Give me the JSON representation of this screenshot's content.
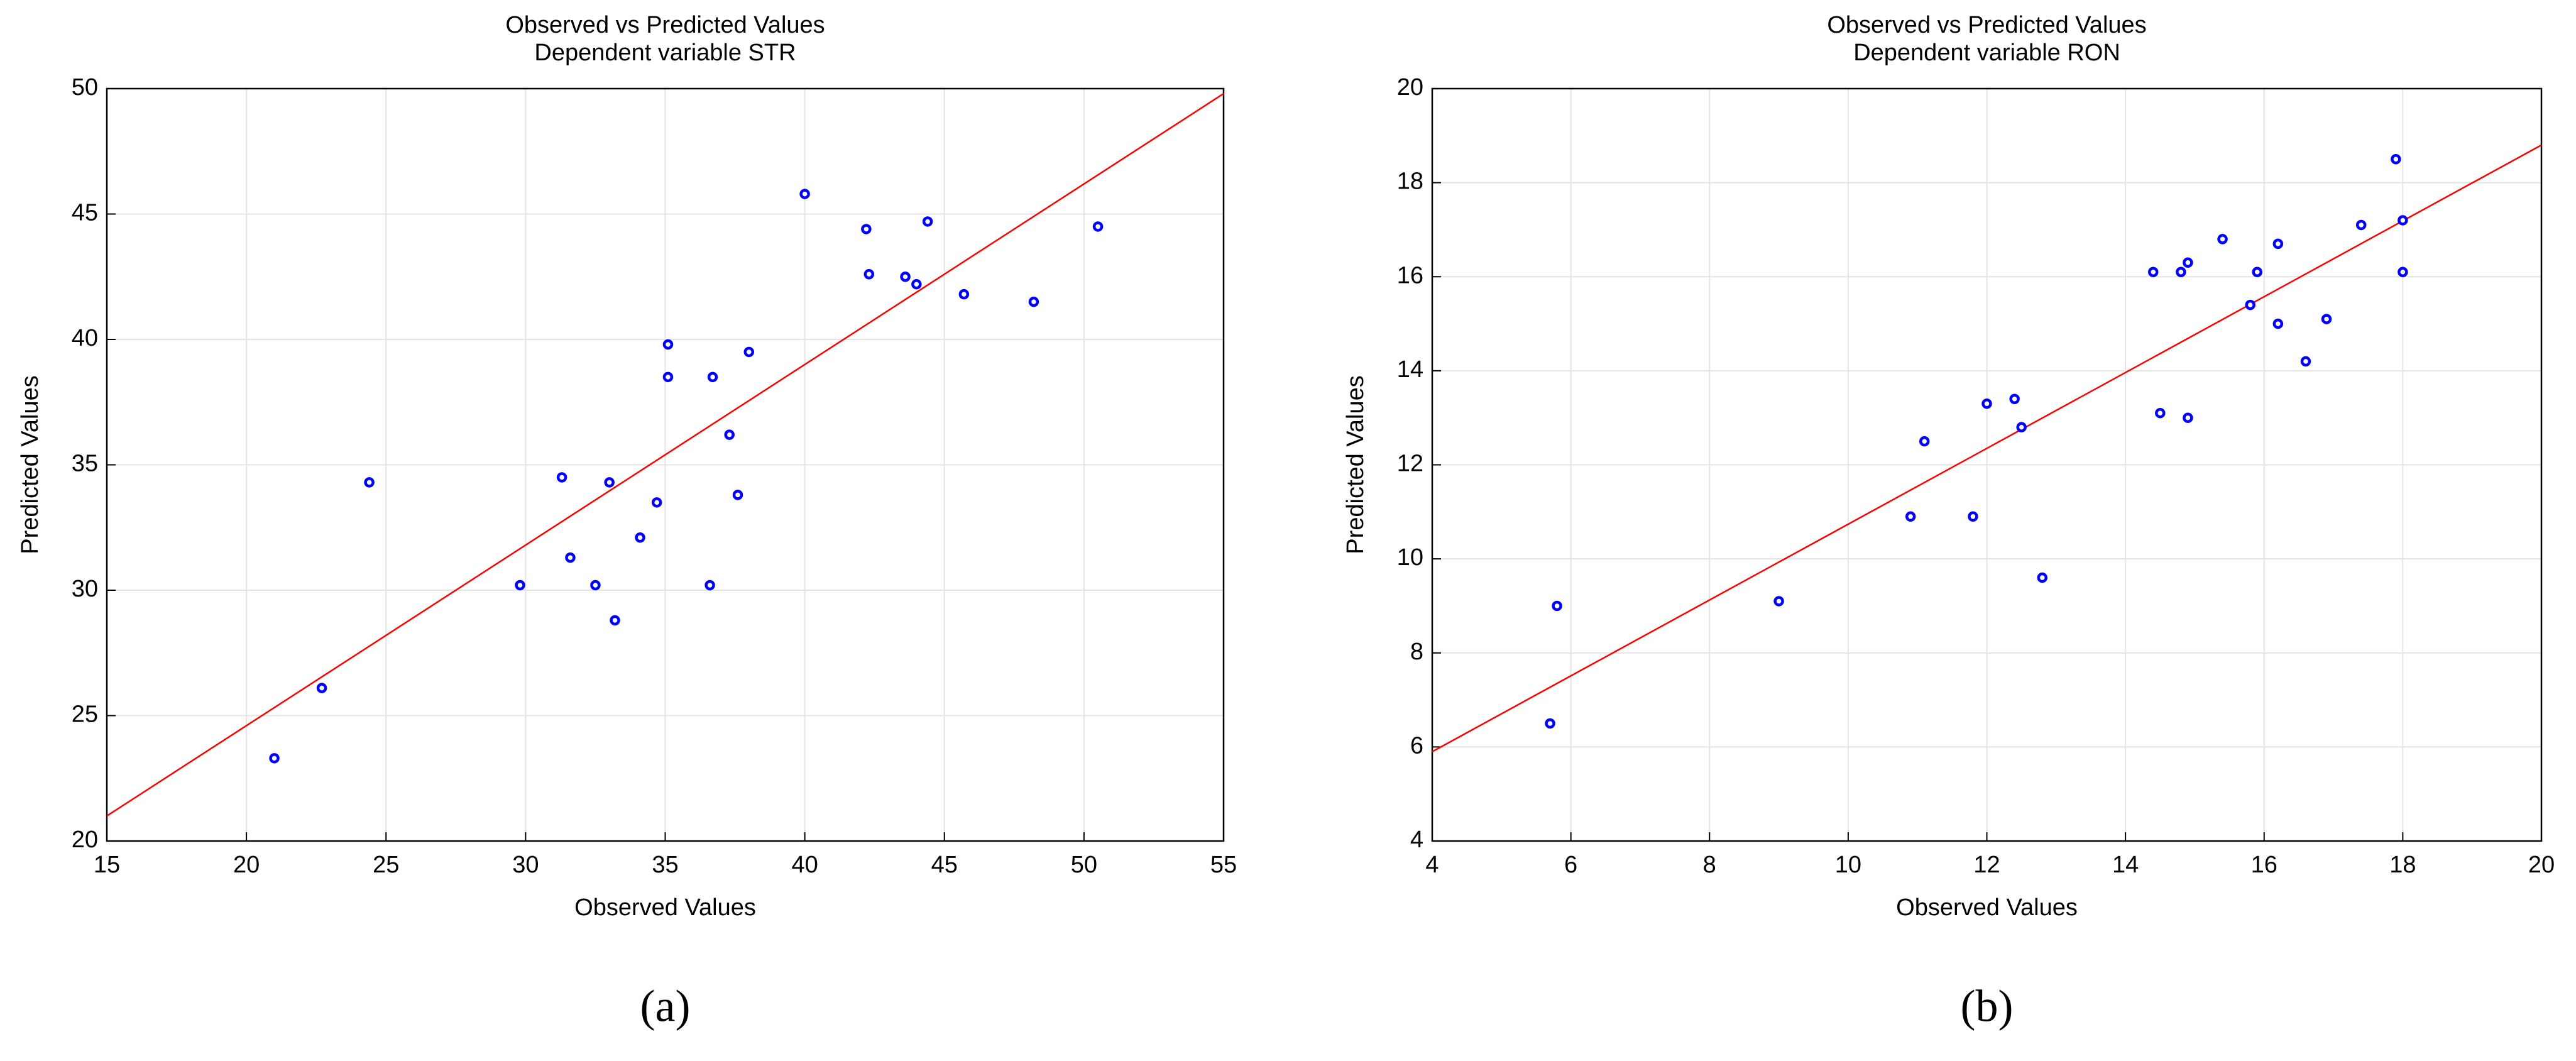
{
  "chart_data": [
    {
      "type": "scatter",
      "title": "Observed vs Predicted Values",
      "subtitle": "Dependent variable STR",
      "xlabel": "Observed Values",
      "ylabel": "Predicted Values",
      "label": "(a)",
      "x": [
        21.0,
        22.7,
        24.4,
        29.8,
        31.3,
        31.6,
        32.5,
        33.0,
        33.2,
        34.1,
        34.7,
        35.1,
        35.1,
        36.6,
        36.7,
        37.3,
        37.6,
        38.0,
        40.0,
        42.2,
        42.3,
        43.6,
        44.0,
        44.4,
        45.7,
        48.2,
        50.5
      ],
      "values": [
        23.3,
        26.1,
        34.3,
        30.2,
        34.5,
        31.3,
        30.2,
        34.3,
        28.8,
        32.1,
        33.5,
        39.8,
        38.5,
        30.2,
        38.5,
        36.2,
        33.8,
        39.5,
        45.8,
        44.4,
        42.6,
        42.5,
        42.2,
        44.7,
        41.8,
        41.5,
        44.5
      ],
      "color": "#0000ff",
      "fit_line": {
        "x": [
          15,
          55
        ],
        "y": [
          21,
          49.8
        ],
        "color": "#ff0000"
      },
      "xlim": [
        15,
        55
      ],
      "xticks": [
        15,
        20,
        25,
        30,
        35,
        40,
        45,
        50,
        55
      ],
      "ylim": [
        20,
        50
      ],
      "yticks": [
        20,
        25,
        30,
        35,
        40,
        45,
        50
      ],
      "grid": true
    },
    {
      "type": "scatter",
      "title": "Observed vs Predicted Values",
      "subtitle": "Dependent variable RON",
      "xlabel": "Observed Values",
      "ylabel": "Predicted Values",
      "label": "(b)",
      "x": [
        5.7,
        5.8,
        9.0,
        10.9,
        11.1,
        11.8,
        12.0,
        12.4,
        12.5,
        12.8,
        14.4,
        14.5,
        14.8,
        14.9,
        14.9,
        15.4,
        15.8,
        15.9,
        16.2,
        16.2,
        16.6,
        16.9,
        17.4,
        17.9,
        18.0,
        18.0
      ],
      "values": [
        6.5,
        9.0,
        9.1,
        10.9,
        12.5,
        10.9,
        13.3,
        13.4,
        12.8,
        9.6,
        16.1,
        13.1,
        16.1,
        16.3,
        13.0,
        16.8,
        15.4,
        16.1,
        16.7,
        15.0,
        14.2,
        15.1,
        17.1,
        18.5,
        17.2,
        16.1
      ],
      "color": "#0000ff",
      "fit_line": {
        "x": [
          4,
          20
        ],
        "y": [
          5.9,
          18.8
        ],
        "color": "#ff0000"
      },
      "xlim": [
        4,
        20
      ],
      "xticks": [
        4,
        6,
        8,
        10,
        12,
        14,
        16,
        18,
        20
      ],
      "ylim": [
        4,
        20
      ],
      "yticks": [
        4,
        6,
        8,
        10,
        12,
        14,
        16,
        18,
        20
      ],
      "grid": true
    }
  ]
}
